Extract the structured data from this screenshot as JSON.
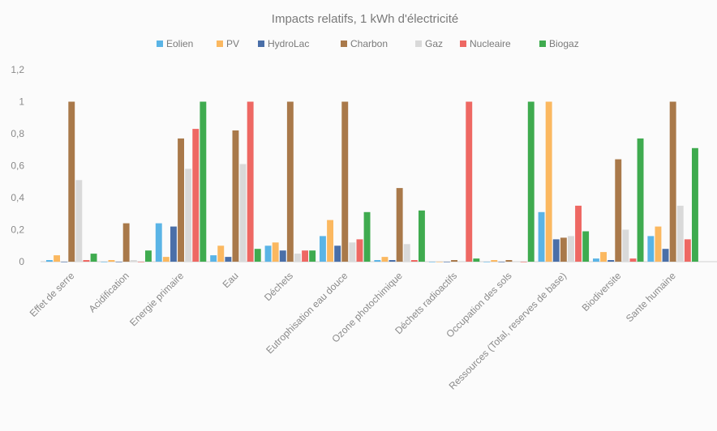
{
  "chart_data": {
    "type": "bar",
    "title": "Impacts relatifs, 1 kWh d'électricité",
    "xlabel": "",
    "ylabel": "",
    "ylim": [
      0,
      1.2
    ],
    "yticks": [
      "0",
      "0,2",
      "0,4",
      "0,6",
      "0,8",
      "1",
      "1,2"
    ],
    "grid": false,
    "legend_position": "top",
    "categories": [
      "Effet de serre",
      "Acidification",
      "Energie primaire",
      "Eau",
      "Déchets",
      "Eutrophisation eau douce",
      "Ozone photochimique",
      "Déchets radioactifs",
      "Occupation des sols",
      "Ressources (Total, reserves de base)",
      "Biodiversite",
      "Sante humaine"
    ],
    "series": [
      {
        "name": "Eolien",
        "color": "#5ab4e6",
        "values": [
          0.01,
          0.0,
          0.24,
          0.04,
          0.1,
          0.16,
          0.01,
          0.0,
          0.0,
          0.31,
          0.02,
          0.16
        ]
      },
      {
        "name": "PV",
        "color": "#fbb860",
        "values": [
          0.04,
          0.01,
          0.03,
          0.1,
          0.12,
          0.26,
          0.03,
          0.0,
          0.01,
          1.0,
          0.06,
          0.22
        ]
      },
      {
        "name": "HydroLac",
        "color": "#4a6fa8",
        "values": [
          0.0,
          0.0,
          0.22,
          0.03,
          0.07,
          0.1,
          0.01,
          0.0,
          0.0,
          0.14,
          0.01,
          0.08
        ]
      },
      {
        "name": "Charbon",
        "color": "#a9794a",
        "values": [
          1.0,
          0.24,
          0.77,
          0.82,
          1.0,
          1.0,
          0.46,
          0.01,
          0.01,
          0.15,
          0.64,
          1.0
        ]
      },
      {
        "name": "Gaz",
        "color": "#d9d9d9",
        "values": [
          0.51,
          0.01,
          0.58,
          0.61,
          0.05,
          0.12,
          0.11,
          0.0,
          0.0,
          0.16,
          0.2,
          0.35
        ]
      },
      {
        "name": "Nucleaire",
        "color": "#ee6863",
        "values": [
          0.01,
          0.0,
          0.83,
          1.0,
          0.07,
          0.14,
          0.01,
          1.0,
          0.0,
          0.35,
          0.02,
          0.14
        ]
      },
      {
        "name": "Biogaz",
        "color": "#3fab4f",
        "values": [
          0.05,
          0.07,
          1.0,
          0.08,
          0.07,
          0.31,
          0.32,
          0.02,
          1.0,
          0.19,
          0.77,
          0.71
        ]
      }
    ]
  }
}
